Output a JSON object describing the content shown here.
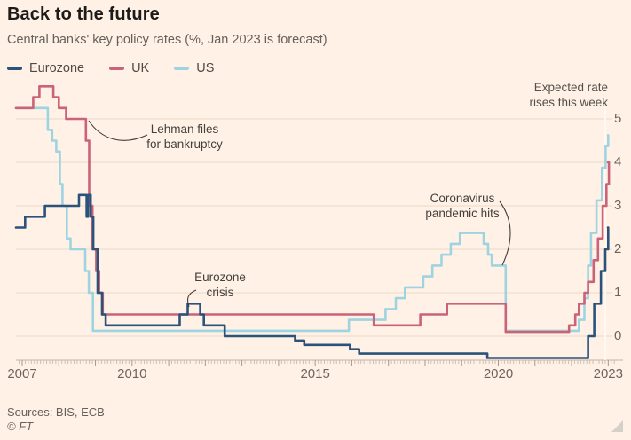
{
  "header": {
    "title": "Back to the future",
    "subtitle": "Central banks' key policy rates (%, Jan 2023 is forecast)"
  },
  "annotations": {
    "lehman": {
      "line1": "Lehman files",
      "line2": "for bankruptcy"
    },
    "eurozone_crisis": {
      "line1": "Eurozone",
      "line2": "crisis"
    },
    "covid": {
      "line1": "Coronavirus",
      "line2": "pandemic hits"
    },
    "expected": {
      "line1": "Expected rate",
      "line2": "rises this week"
    }
  },
  "chart_data": {
    "type": "line",
    "line_style": "step-after",
    "title": "Back to the future",
    "subtitle": "Central banks' key policy rates (%, Jan 2023 is forecast)",
    "xlabel": "",
    "ylabel": "%",
    "x_ticks": [
      2007,
      2010,
      2015,
      2020,
      2023
    ],
    "y_ticks": [
      5,
      4,
      3,
      2,
      1,
      0
    ],
    "xlim": [
      2006.83,
      2023.3
    ],
    "ylim": [
      -0.6,
      5.5
    ],
    "grid": "horizontal-only",
    "legend_position": "top-left",
    "forecast_marker_year": 2022.92,
    "axis_minor_ticks": "monthly",
    "series": [
      {
        "name": "Eurozone",
        "color": "#2a527a",
        "points": [
          [
            2006.83,
            2.5
          ],
          [
            2007.08,
            2.75
          ],
          [
            2007.62,
            3.0
          ],
          [
            2008.55,
            3.25
          ],
          [
            2008.76,
            2.75
          ],
          [
            2008.8,
            3.25
          ],
          [
            2008.87,
            2.75
          ],
          [
            2008.94,
            2.0
          ],
          [
            2009.06,
            1.0
          ],
          [
            2009.18,
            0.5
          ],
          [
            2009.28,
            0.25
          ],
          [
            2011.3,
            0.5
          ],
          [
            2011.52,
            0.75
          ],
          [
            2011.86,
            0.5
          ],
          [
            2011.96,
            0.25
          ],
          [
            2012.53,
            0.0
          ],
          [
            2014.45,
            -0.1
          ],
          [
            2014.7,
            -0.2
          ],
          [
            2015.95,
            -0.3
          ],
          [
            2016.2,
            -0.4
          ],
          [
            2019.7,
            -0.5
          ],
          [
            2022.45,
            0.0
          ],
          [
            2022.62,
            0.75
          ],
          [
            2022.8,
            1.5
          ],
          [
            2022.92,
            2.0
          ],
          [
            2023.0,
            2.5
          ]
        ]
      },
      {
        "name": "UK",
        "color": "#ca6378",
        "points": [
          [
            2006.83,
            5.25
          ],
          [
            2007.3,
            5.5
          ],
          [
            2007.47,
            5.75
          ],
          [
            2007.85,
            5.5
          ],
          [
            2008.0,
            5.25
          ],
          [
            2008.2,
            5.0
          ],
          [
            2008.74,
            4.5
          ],
          [
            2008.83,
            3.0
          ],
          [
            2008.92,
            2.0
          ],
          [
            2009.02,
            1.5
          ],
          [
            2009.1,
            1.0
          ],
          [
            2009.2,
            0.5
          ],
          [
            2016.6,
            0.25
          ],
          [
            2017.87,
            0.5
          ],
          [
            2018.6,
            0.75
          ],
          [
            2020.2,
            0.1
          ],
          [
            2021.93,
            0.25
          ],
          [
            2022.1,
            0.5
          ],
          [
            2022.2,
            0.75
          ],
          [
            2022.35,
            1.0
          ],
          [
            2022.45,
            1.25
          ],
          [
            2022.6,
            1.75
          ],
          [
            2022.72,
            2.25
          ],
          [
            2022.85,
            3.0
          ],
          [
            2022.95,
            3.5
          ],
          [
            2023.02,
            4.0
          ]
        ]
      },
      {
        "name": "US",
        "color": "#9ed4e2",
        "points": [
          [
            2006.83,
            5.25
          ],
          [
            2007.7,
            4.75
          ],
          [
            2007.82,
            4.5
          ],
          [
            2007.93,
            4.25
          ],
          [
            2008.03,
            3.5
          ],
          [
            2008.1,
            3.0
          ],
          [
            2008.22,
            2.25
          ],
          [
            2008.32,
            2.0
          ],
          [
            2008.72,
            1.5
          ],
          [
            2008.82,
            1.0
          ],
          [
            2008.93,
            0.125
          ],
          [
            2015.92,
            0.375
          ],
          [
            2016.92,
            0.625
          ],
          [
            2017.2,
            0.875
          ],
          [
            2017.45,
            1.125
          ],
          [
            2017.95,
            1.375
          ],
          [
            2018.2,
            1.625
          ],
          [
            2018.45,
            1.875
          ],
          [
            2018.7,
            2.125
          ],
          [
            2018.95,
            2.375
          ],
          [
            2019.6,
            2.125
          ],
          [
            2019.72,
            1.875
          ],
          [
            2019.82,
            1.625
          ],
          [
            2020.2,
            0.125
          ],
          [
            2022.2,
            0.375
          ],
          [
            2022.35,
            0.875
          ],
          [
            2022.45,
            1.625
          ],
          [
            2022.53,
            2.375
          ],
          [
            2022.68,
            3.125
          ],
          [
            2022.83,
            3.875
          ],
          [
            2022.93,
            4.375
          ],
          [
            2023.0,
            4.625
          ]
        ]
      }
    ]
  },
  "footer": {
    "sources": "Sources: BIS, ECB",
    "copyright": "© FT"
  },
  "style": {
    "background": "#fff1e5",
    "gridline_color": "#e9d9c9",
    "axis_line_color": "#c2b4a6",
    "minor_tick_color": "#cdbfb0",
    "year_tick_color": "#a5988a",
    "forecast_marker_color": "#fffaf3"
  }
}
